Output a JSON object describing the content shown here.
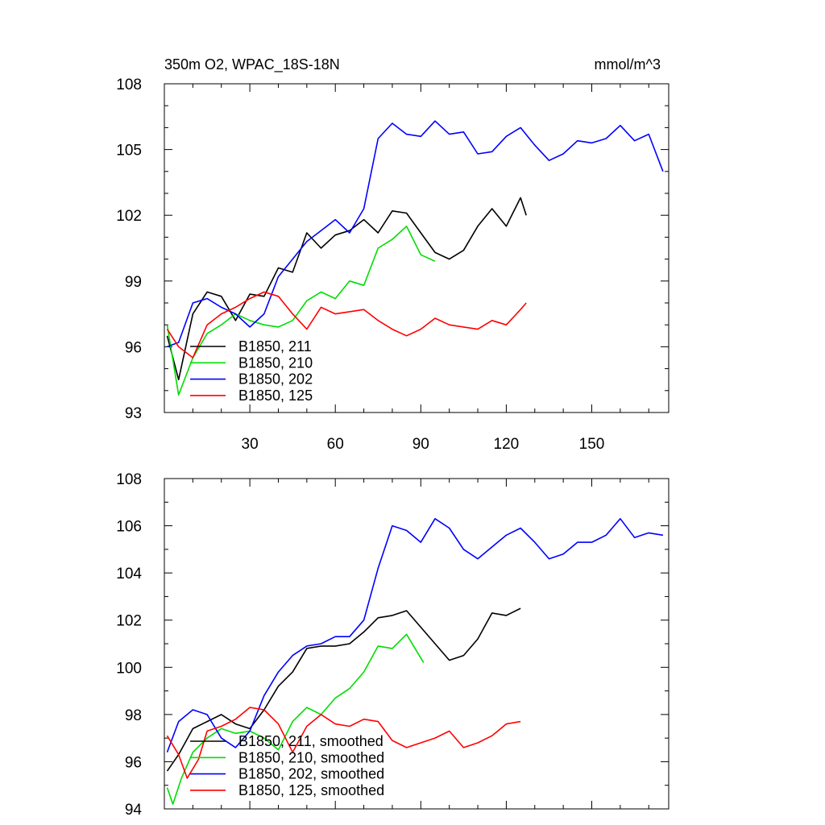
{
  "chart_data": [
    {
      "type": "line",
      "title": "350m O2, WPAC_18S-18N",
      "units": "mmol/m^3",
      "xlim": [
        0,
        177
      ],
      "ylim": [
        93,
        108
      ],
      "xticks": [
        30,
        60,
        90,
        120,
        150
      ],
      "yticks": [
        93,
        96,
        99,
        102,
        105,
        108
      ],
      "grid": false,
      "legend_position": "bottom-left",
      "series": [
        {
          "name": "B1850, 211",
          "color": "#000000",
          "x": [
            1,
            5,
            10,
            15,
            20,
            25,
            30,
            35,
            40,
            45,
            50,
            55,
            60,
            65,
            70,
            75,
            80,
            85,
            90,
            95,
            100,
            105,
            110,
            115,
            120,
            125,
            127
          ],
          "y": [
            96.5,
            94.5,
            97.5,
            98.5,
            98.3,
            97.2,
            98.4,
            98.3,
            99.6,
            99.4,
            101.2,
            100.5,
            101.1,
            101.3,
            101.8,
            101.2,
            102.2,
            102.1,
            101.2,
            100.3,
            100.0,
            100.4,
            101.5,
            102.3,
            101.5,
            102.8,
            102.0
          ]
        },
        {
          "name": "B1850, 210",
          "color": "#00dd00",
          "x": [
            1,
            5,
            10,
            15,
            20,
            25,
            30,
            35,
            40,
            45,
            50,
            55,
            60,
            65,
            70,
            75,
            80,
            85,
            90,
            95
          ],
          "y": [
            97.0,
            93.8,
            95.5,
            96.6,
            97.0,
            97.5,
            97.2,
            97.0,
            96.9,
            97.2,
            98.1,
            98.5,
            98.2,
            99.0,
            98.8,
            100.5,
            100.9,
            101.5,
            100.2,
            99.9
          ]
        },
        {
          "name": "B1850, 202",
          "color": "#0000ff",
          "x": [
            1,
            5,
            10,
            15,
            20,
            25,
            30,
            35,
            40,
            45,
            50,
            55,
            60,
            65,
            70,
            75,
            80,
            85,
            90,
            95,
            100,
            105,
            110,
            115,
            120,
            125,
            130,
            135,
            140,
            145,
            150,
            155,
            160,
            165,
            170,
            175
          ],
          "y": [
            96.0,
            96.2,
            98.0,
            98.2,
            97.8,
            97.5,
            96.9,
            97.5,
            99.2,
            100.0,
            100.8,
            101.3,
            101.8,
            101.2,
            102.3,
            105.5,
            106.2,
            105.7,
            105.6,
            106.3,
            105.7,
            105.8,
            104.8,
            104.9,
            105.6,
            106.0,
            105.2,
            104.5,
            104.8,
            105.4,
            105.3,
            105.5,
            106.1,
            105.4,
            105.7,
            104.0
          ]
        },
        {
          "name": "B1850, 125",
          "color": "#ff0000",
          "x": [
            1,
            5,
            10,
            15,
            20,
            25,
            30,
            35,
            40,
            45,
            50,
            55,
            60,
            65,
            70,
            75,
            80,
            85,
            90,
            95,
            100,
            105,
            110,
            115,
            120,
            125,
            127
          ],
          "y": [
            96.8,
            96.0,
            95.5,
            97.0,
            97.5,
            97.8,
            98.2,
            98.5,
            98.3,
            97.5,
            96.8,
            97.8,
            97.5,
            97.6,
            97.7,
            97.2,
            96.8,
            96.5,
            96.8,
            97.3,
            97.0,
            96.9,
            96.8,
            97.2,
            97.0,
            97.7,
            98.0
          ]
        }
      ]
    },
    {
      "type": "line",
      "title": "",
      "xlim": [
        0,
        177
      ],
      "ylim": [
        94,
        108
      ],
      "xticks": [
        30,
        60,
        90,
        120,
        150
      ],
      "yticks": [
        94,
        96,
        98,
        100,
        102,
        104,
        106,
        108
      ],
      "grid": false,
      "legend_position": "bottom-left",
      "series": [
        {
          "name": "B1850, 211, smoothed",
          "color": "#000000",
          "x": [
            1,
            5,
            10,
            15,
            20,
            25,
            30,
            35,
            40,
            45,
            50,
            55,
            60,
            65,
            70,
            75,
            80,
            85,
            90,
            95,
            100,
            105,
            110,
            115,
            120,
            125
          ],
          "y": [
            95.6,
            96.3,
            97.4,
            97.7,
            98.0,
            97.6,
            97.4,
            98.2,
            99.2,
            99.8,
            100.8,
            100.9,
            100.9,
            101.0,
            101.5,
            102.1,
            102.2,
            102.4,
            101.7,
            101.0,
            100.3,
            100.5,
            101.2,
            102.3,
            102.2,
            102.5
          ]
        },
        {
          "name": "B1850, 210, smoothed",
          "color": "#00dd00",
          "x": [
            1,
            3,
            6,
            10,
            15,
            20,
            25,
            30,
            35,
            40,
            45,
            50,
            55,
            60,
            65,
            70,
            75,
            80,
            85,
            88,
            91
          ],
          "y": [
            94.9,
            94.2,
            95.3,
            96.4,
            97.0,
            97.4,
            97.2,
            97.3,
            97.0,
            96.5,
            97.7,
            98.3,
            98.0,
            98.7,
            99.1,
            99.8,
            100.9,
            100.8,
            101.4,
            100.8,
            100.2
          ]
        },
        {
          "name": "B1850, 202, smoothed",
          "color": "#0000ff",
          "x": [
            1,
            5,
            10,
            15,
            20,
            25,
            30,
            35,
            40,
            45,
            50,
            55,
            60,
            65,
            70,
            75,
            80,
            85,
            90,
            95,
            100,
            105,
            110,
            115,
            120,
            125,
            130,
            135,
            140,
            145,
            150,
            155,
            160,
            165,
            170,
            175
          ],
          "y": [
            96.4,
            97.7,
            98.2,
            98.0,
            97.0,
            96.6,
            97.3,
            98.8,
            99.8,
            100.5,
            100.9,
            101.0,
            101.3,
            101.3,
            102.0,
            104.2,
            106.0,
            105.8,
            105.3,
            106.3,
            105.9,
            105.0,
            104.6,
            105.1,
            105.6,
            105.9,
            105.3,
            104.6,
            104.8,
            105.3,
            105.3,
            105.6,
            106.3,
            105.5,
            105.7,
            105.6
          ]
        },
        {
          "name": "B1850, 125, smoothed",
          "color": "#ff0000",
          "x": [
            1,
            5,
            8,
            12,
            15,
            20,
            25,
            30,
            35,
            40,
            45,
            50,
            55,
            60,
            65,
            70,
            75,
            80,
            85,
            90,
            95,
            100,
            105,
            110,
            115,
            120,
            125
          ],
          "y": [
            97.1,
            96.3,
            95.3,
            96.1,
            97.3,
            97.5,
            97.8,
            98.3,
            98.2,
            97.6,
            96.4,
            97.5,
            98.0,
            97.6,
            97.5,
            97.8,
            97.7,
            96.9,
            96.6,
            96.8,
            97.0,
            97.3,
            96.6,
            96.8,
            97.1,
            97.6,
            97.7
          ]
        }
      ]
    }
  ]
}
